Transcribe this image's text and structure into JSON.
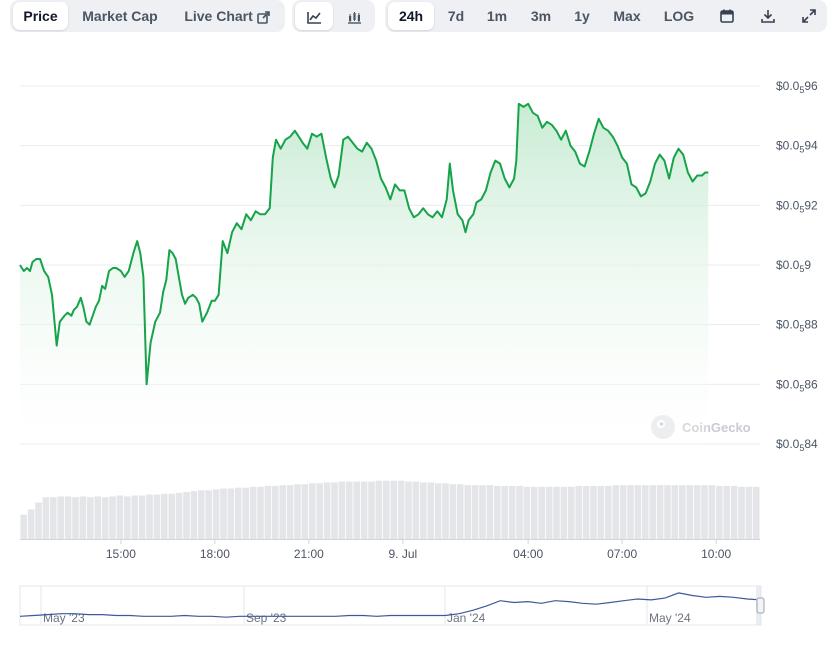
{
  "toolbar": {
    "tabs": [
      {
        "label": "Price",
        "active": true
      },
      {
        "label": "Market Cap",
        "active": false
      },
      {
        "label": "Live Chart",
        "active": false,
        "icon": "external-link-icon"
      }
    ],
    "chart_types": [
      "line-chart-icon",
      "candlestick-chart-icon"
    ],
    "ranges": [
      {
        "label": "24h",
        "active": true
      },
      {
        "label": "7d",
        "active": false
      },
      {
        "label": "1m",
        "active": false
      },
      {
        "label": "3m",
        "active": false
      },
      {
        "label": "1y",
        "active": false
      },
      {
        "label": "Max",
        "active": false
      },
      {
        "label": "LOG",
        "active": false
      }
    ],
    "actions": [
      "calendar-icon",
      "download-icon",
      "fullscreen-icon"
    ]
  },
  "watermark": {
    "text": "CoinGecko"
  },
  "colors": {
    "line": "#16a34a",
    "area_top": "#bfe8cc",
    "volume": "#e3e5e8",
    "navigator": "#3b5a9a"
  },
  "chart_data": {
    "type": "line",
    "title": "",
    "xlabel": "",
    "ylabel": "",
    "y_axis": {
      "position": "right",
      "range": [
        0.0584,
        0.0596
      ],
      "ticks": [
        {
          "value": 0.0596,
          "prefix": "$0.0",
          "sub": "5",
          "digits": "96"
        },
        {
          "value": 0.0594,
          "prefix": "$0.0",
          "sub": "5",
          "digits": "94"
        },
        {
          "value": 0.0592,
          "prefix": "$0.0",
          "sub": "5",
          "digits": "92"
        },
        {
          "value": 0.059,
          "prefix": "$0.0",
          "sub": "5",
          "digits": "9"
        },
        {
          "value": 0.0588,
          "prefix": "$0.0",
          "sub": "5",
          "digits": "88"
        },
        {
          "value": 0.0586,
          "prefix": "$0.0",
          "sub": "5",
          "digits": "86"
        },
        {
          "value": 0.0584,
          "prefix": "$0.0",
          "sub": "5",
          "digits": "84"
        }
      ]
    },
    "x_axis": {
      "range": [
        11.78,
        35.4
      ],
      "ticks": [
        {
          "t": 15,
          "label": "15:00"
        },
        {
          "t": 18,
          "label": "18:00"
        },
        {
          "t": 21,
          "label": "21:00"
        },
        {
          "t": 24,
          "label": "9. Jul"
        },
        {
          "t": 28,
          "label": "04:00"
        },
        {
          "t": 31,
          "label": "07:00"
        },
        {
          "t": 34,
          "label": "10:00"
        }
      ]
    },
    "grid": true,
    "series": [
      {
        "points": [
          [
            11.78,
            0.059
          ],
          [
            11.9,
            0.05898
          ],
          [
            12.0,
            0.05899
          ],
          [
            12.1,
            0.05898
          ],
          [
            12.18,
            0.05901
          ],
          [
            12.3,
            0.05902
          ],
          [
            12.42,
            0.05902
          ],
          [
            12.55,
            0.05898
          ],
          [
            12.68,
            0.05896
          ],
          [
            12.8,
            0.0589
          ],
          [
            12.95,
            0.05873
          ],
          [
            13.05,
            0.05881
          ],
          [
            13.2,
            0.05883
          ],
          [
            13.3,
            0.05884
          ],
          [
            13.42,
            0.05883
          ],
          [
            13.5,
            0.05885
          ],
          [
            13.6,
            0.05886
          ],
          [
            13.72,
            0.05889
          ],
          [
            13.8,
            0.05886
          ],
          [
            13.9,
            0.05881
          ],
          [
            14.0,
            0.0588
          ],
          [
            14.1,
            0.05883
          ],
          [
            14.2,
            0.05886
          ],
          [
            14.3,
            0.05888
          ],
          [
            14.4,
            0.05893
          ],
          [
            14.5,
            0.05892
          ],
          [
            14.62,
            0.05898
          ],
          [
            14.75,
            0.05899
          ],
          [
            14.85,
            0.05899
          ],
          [
            15.0,
            0.05898
          ],
          [
            15.12,
            0.05896
          ],
          [
            15.25,
            0.05898
          ],
          [
            15.4,
            0.05904
          ],
          [
            15.52,
            0.05908
          ],
          [
            15.62,
            0.05904
          ],
          [
            15.72,
            0.05896
          ],
          [
            15.82,
            0.0586
          ],
          [
            15.95,
            0.05874
          ],
          [
            16.1,
            0.05881
          ],
          [
            16.25,
            0.05884
          ],
          [
            16.35,
            0.05891
          ],
          [
            16.45,
            0.05895
          ],
          [
            16.55,
            0.05905
          ],
          [
            16.65,
            0.05904
          ],
          [
            16.75,
            0.05902
          ],
          [
            16.85,
            0.05896
          ],
          [
            16.95,
            0.0589
          ],
          [
            17.05,
            0.05887
          ],
          [
            17.15,
            0.05889
          ],
          [
            17.3,
            0.0589
          ],
          [
            17.4,
            0.05889
          ],
          [
            17.5,
            0.05887
          ],
          [
            17.6,
            0.05881
          ],
          [
            17.75,
            0.05884
          ],
          [
            17.9,
            0.05888
          ],
          [
            18.0,
            0.05888
          ],
          [
            18.12,
            0.0589
          ],
          [
            18.25,
            0.05908
          ],
          [
            18.4,
            0.05904
          ],
          [
            18.55,
            0.05911
          ],
          [
            18.7,
            0.05914
          ],
          [
            18.85,
            0.05912
          ],
          [
            19.0,
            0.05917
          ],
          [
            19.15,
            0.05915
          ],
          [
            19.3,
            0.05918
          ],
          [
            19.45,
            0.05917
          ],
          [
            19.6,
            0.05917
          ],
          [
            19.75,
            0.05919
          ],
          [
            19.85,
            0.05936
          ],
          [
            19.95,
            0.05942
          ],
          [
            20.1,
            0.05939
          ],
          [
            20.25,
            0.05942
          ],
          [
            20.4,
            0.05943
          ],
          [
            20.55,
            0.05945
          ],
          [
            20.68,
            0.05943
          ],
          [
            20.8,
            0.05941
          ],
          [
            20.95,
            0.05939
          ],
          [
            21.1,
            0.05944
          ],
          [
            21.25,
            0.05943
          ],
          [
            21.4,
            0.05944
          ],
          [
            21.55,
            0.05936
          ],
          [
            21.7,
            0.05929
          ],
          [
            21.82,
            0.05926
          ],
          [
            21.95,
            0.0593
          ],
          [
            22.1,
            0.05942
          ],
          [
            22.25,
            0.05943
          ],
          [
            22.4,
            0.05941
          ],
          [
            22.55,
            0.05939
          ],
          [
            22.7,
            0.05938
          ],
          [
            22.85,
            0.05941
          ],
          [
            23.0,
            0.05939
          ],
          [
            23.15,
            0.05935
          ],
          [
            23.3,
            0.05929
          ],
          [
            23.45,
            0.05926
          ],
          [
            23.6,
            0.05922
          ],
          [
            23.75,
            0.05927
          ],
          [
            23.9,
            0.05925
          ],
          [
            24.05,
            0.05925
          ],
          [
            24.2,
            0.05919
          ],
          [
            24.35,
            0.05916
          ],
          [
            24.5,
            0.05917
          ],
          [
            24.65,
            0.05919
          ],
          [
            24.8,
            0.05917
          ],
          [
            24.95,
            0.05916
          ],
          [
            25.1,
            0.05918
          ],
          [
            25.25,
            0.05916
          ],
          [
            25.4,
            0.05922
          ],
          [
            25.5,
            0.05934
          ],
          [
            25.6,
            0.05925
          ],
          [
            25.75,
            0.05917
          ],
          [
            25.9,
            0.05915
          ],
          [
            26.0,
            0.05911
          ],
          [
            26.1,
            0.05915
          ],
          [
            26.25,
            0.05917
          ],
          [
            26.35,
            0.05921
          ],
          [
            26.5,
            0.05922
          ],
          [
            26.65,
            0.05925
          ],
          [
            26.8,
            0.05931
          ],
          [
            26.95,
            0.05935
          ],
          [
            27.1,
            0.05934
          ],
          [
            27.25,
            0.05929
          ],
          [
            27.4,
            0.05926
          ],
          [
            27.55,
            0.05929
          ],
          [
            27.62,
            0.05935
          ],
          [
            27.7,
            0.05954
          ],
          [
            27.85,
            0.05953
          ],
          [
            28.0,
            0.05954
          ],
          [
            28.15,
            0.05951
          ],
          [
            28.3,
            0.0595
          ],
          [
            28.45,
            0.05946
          ],
          [
            28.6,
            0.05948
          ],
          [
            28.75,
            0.05947
          ],
          [
            28.9,
            0.05945
          ],
          [
            29.05,
            0.05942
          ],
          [
            29.2,
            0.05945
          ],
          [
            29.35,
            0.0594
          ],
          [
            29.5,
            0.05938
          ],
          [
            29.65,
            0.05934
          ],
          [
            29.8,
            0.05933
          ],
          [
            29.95,
            0.05938
          ],
          [
            30.1,
            0.05944
          ],
          [
            30.25,
            0.05949
          ],
          [
            30.4,
            0.05946
          ],
          [
            30.55,
            0.05945
          ],
          [
            30.7,
            0.05943
          ],
          [
            30.85,
            0.0594
          ],
          [
            31.0,
            0.05936
          ],
          [
            31.15,
            0.05934
          ],
          [
            31.3,
            0.05927
          ],
          [
            31.45,
            0.05926
          ],
          [
            31.6,
            0.05923
          ],
          [
            31.75,
            0.05924
          ],
          [
            31.9,
            0.05928
          ],
          [
            32.05,
            0.05934
          ],
          [
            32.2,
            0.05937
          ],
          [
            32.35,
            0.05935
          ],
          [
            32.5,
            0.05929
          ],
          [
            32.65,
            0.05936
          ],
          [
            32.8,
            0.05939
          ],
          [
            32.95,
            0.05937
          ],
          [
            33.1,
            0.05931
          ],
          [
            33.25,
            0.05928
          ],
          [
            33.4,
            0.0593
          ],
          [
            33.55,
            0.0593
          ],
          [
            33.65,
            0.05931
          ],
          [
            33.75,
            0.05931
          ]
        ]
      }
    ],
    "volume": {
      "values": [
        0.28,
        0.34,
        0.42,
        0.48,
        0.48,
        0.49,
        0.49,
        0.48,
        0.49,
        0.48,
        0.49,
        0.48,
        0.49,
        0.5,
        0.49,
        0.5,
        0.5,
        0.51,
        0.51,
        0.52,
        0.52,
        0.53,
        0.54,
        0.55,
        0.56,
        0.56,
        0.57,
        0.58,
        0.58,
        0.59,
        0.59,
        0.6,
        0.6,
        0.61,
        0.61,
        0.62,
        0.62,
        0.63,
        0.63,
        0.64,
        0.64,
        0.65,
        0.65,
        0.66,
        0.66,
        0.66,
        0.66,
        0.66,
        0.67,
        0.67,
        0.67,
        0.67,
        0.66,
        0.66,
        0.65,
        0.65,
        0.64,
        0.64,
        0.63,
        0.63,
        0.62,
        0.62,
        0.62,
        0.62,
        0.61,
        0.61,
        0.61,
        0.61,
        0.6,
        0.6,
        0.6,
        0.6,
        0.6,
        0.6,
        0.6,
        0.61,
        0.61,
        0.61,
        0.61,
        0.61,
        0.62,
        0.62,
        0.62,
        0.62,
        0.62,
        0.62,
        0.62,
        0.62,
        0.62,
        0.62,
        0.62,
        0.62,
        0.62,
        0.62,
        0.61,
        0.61,
        0.61,
        0.6,
        0.6,
        0.6
      ]
    },
    "navigator": {
      "labels": [
        "May '23",
        "Sep '23",
        "Jan '24",
        "May '24"
      ],
      "values": [
        0.04,
        0.041,
        0.042,
        0.043,
        0.043,
        0.042,
        0.042,
        0.041,
        0.041,
        0.04,
        0.04,
        0.04,
        0.041,
        0.04,
        0.04,
        0.039,
        0.04,
        0.04,
        0.04,
        0.04,
        0.04,
        0.04,
        0.04,
        0.04,
        0.041,
        0.041,
        0.04,
        0.041,
        0.041,
        0.041,
        0.041,
        0.041,
        0.043,
        0.047,
        0.052,
        0.058,
        0.056,
        0.057,
        0.055,
        0.058,
        0.057,
        0.055,
        0.054,
        0.056,
        0.058,
        0.06,
        0.059,
        0.061,
        0.067,
        0.064,
        0.062,
        0.063,
        0.062,
        0.06,
        0.059
      ]
    }
  }
}
